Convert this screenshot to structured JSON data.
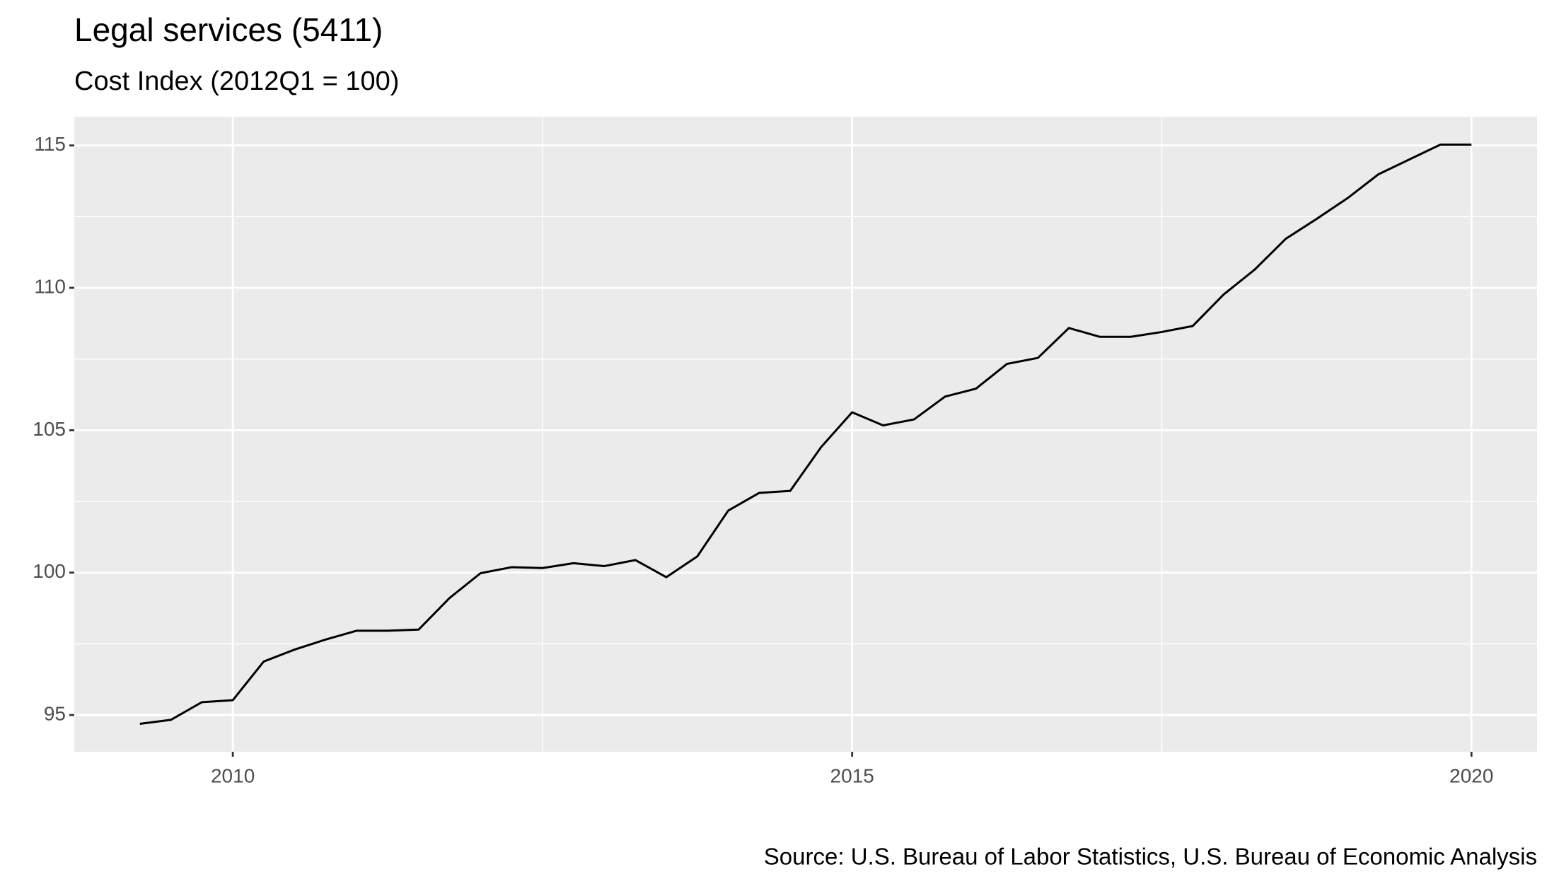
{
  "chart_data": {
    "type": "line",
    "title": "Legal services (5411)",
    "subtitle": "Cost Index (2012Q1 = 100)",
    "source": "Source: U.S. Bureau of Labor Statistics, U.S. Bureau of Economic Analysis",
    "x": [
      2009.25,
      2009.5,
      2009.75,
      2010,
      2010.25,
      2010.5,
      2010.75,
      2011,
      2011.25,
      2011.5,
      2011.75,
      2012,
      2012.25,
      2012.5,
      2012.75,
      2013,
      2013.25,
      2013.5,
      2013.75,
      2014,
      2014.25,
      2014.5,
      2014.75,
      2015,
      2015.25,
      2015.5,
      2015.75,
      2016,
      2016.25,
      2016.5,
      2016.75,
      2017,
      2017.25,
      2017.5,
      2017.75,
      2018,
      2018.25,
      2018.5,
      2018.75,
      2019,
      2019.25,
      2019.5,
      2019.75,
      2020
    ],
    "values": [
      94.69,
      94.83,
      95.45,
      95.52,
      96.88,
      97.3,
      97.65,
      97.96,
      97.96,
      98.0,
      99.11,
      99.98,
      100.19,
      100.16,
      100.33,
      100.23,
      100.44,
      99.84,
      100.57,
      102.18,
      102.8,
      102.87,
      104.41,
      105.63,
      105.17,
      105.38,
      106.18,
      106.46,
      107.33,
      107.54,
      108.59,
      108.28,
      108.28,
      108.45,
      108.66,
      109.77,
      110.64,
      111.72,
      112.42,
      113.15,
      113.99,
      114.51,
      115.03,
      115.03
    ],
    "color": "#000000",
    "xlim": [
      2008.72,
      2020.53
    ],
    "xticks": [
      2010,
      2015,
      2020
    ],
    "ylim": [
      93.71,
      116.01
    ],
    "yticks": [
      95,
      100,
      105,
      110,
      115
    ],
    "grid": true
  }
}
